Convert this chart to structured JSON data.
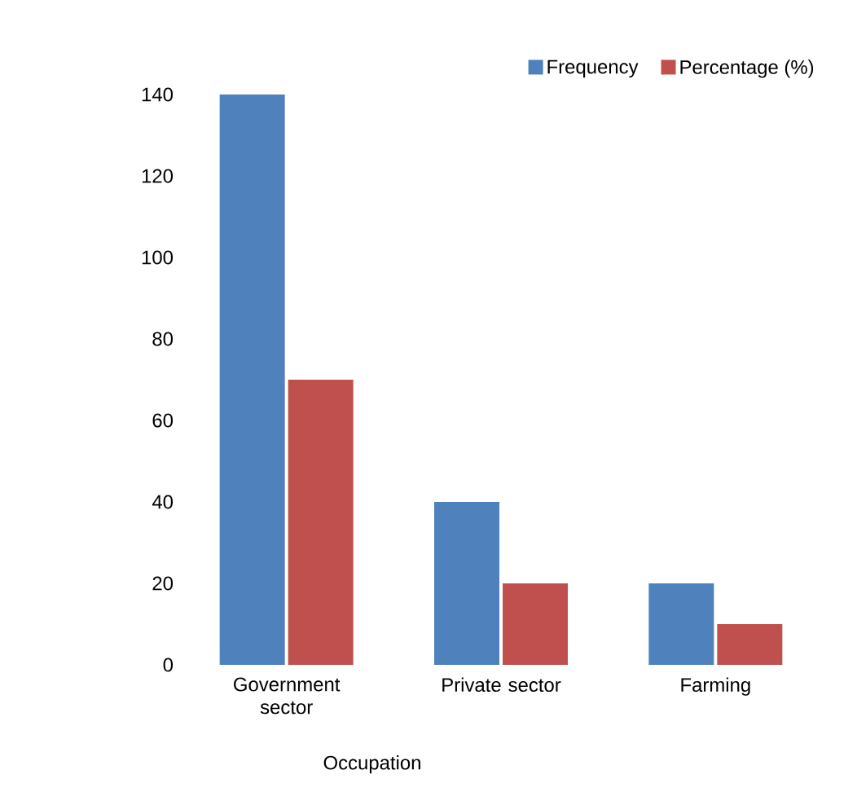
{
  "chart_data": {
    "type": "bar",
    "xlabel": "Occupation",
    "categories": [
      "Government sector",
      "Private sector",
      "Farming"
    ],
    "series": [
      {
        "name": "Frequency",
        "color": "#4f81bd",
        "values": [
          140,
          40,
          20
        ]
      },
      {
        "name": "Percentage (%)",
        "color": "#c0504d",
        "values": [
          70,
          20,
          10
        ]
      }
    ],
    "ylim": [
      0,
      140
    ],
    "yticks": [
      0,
      20,
      40,
      60,
      80,
      100,
      120,
      140
    ],
    "legend": "top right"
  }
}
